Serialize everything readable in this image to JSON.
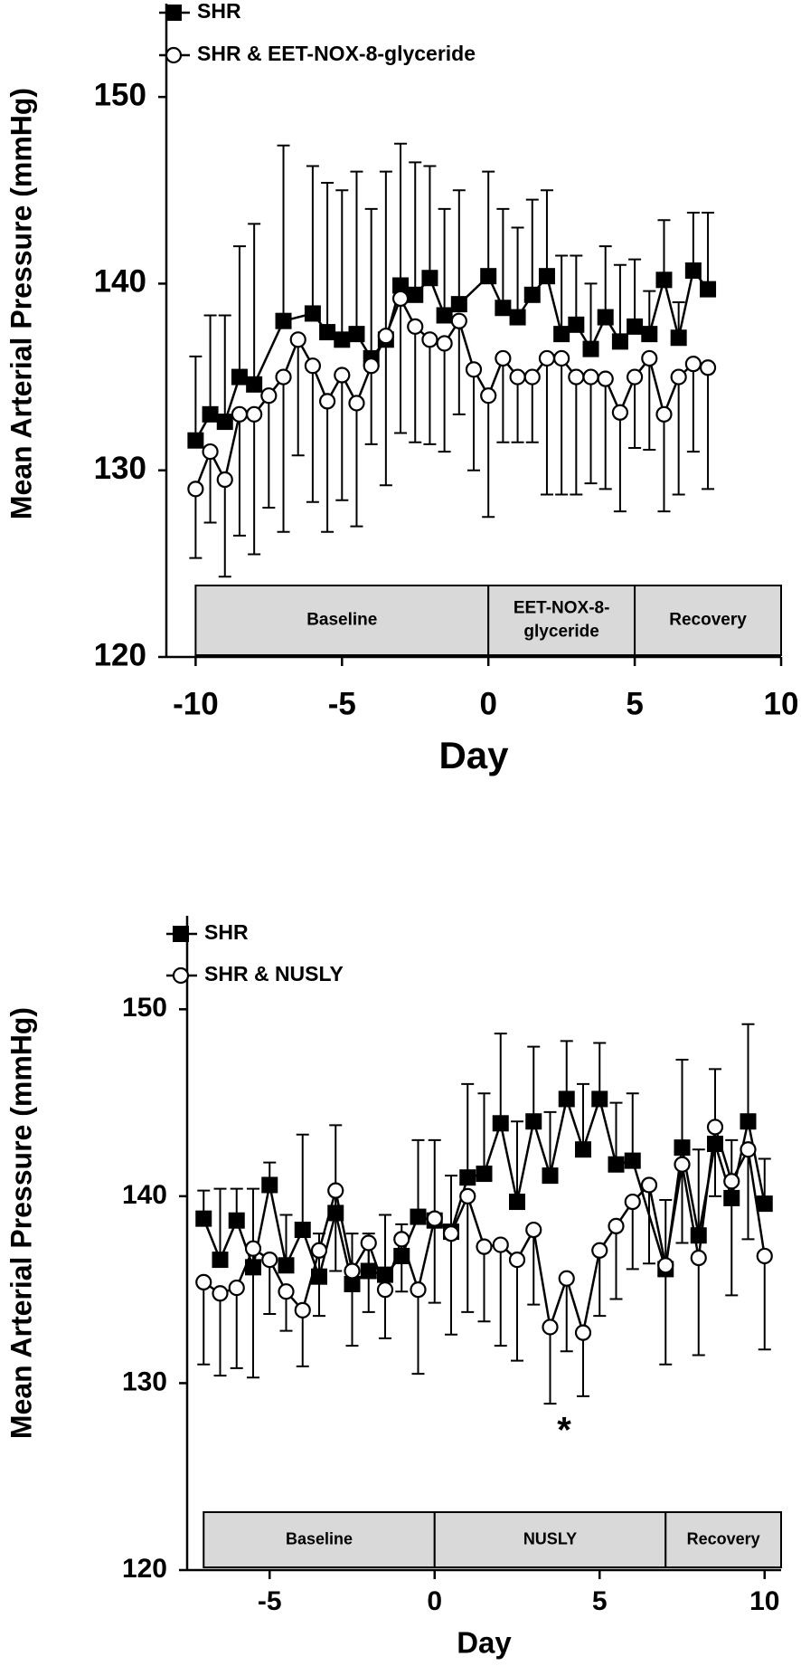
{
  "chart_data": [
    {
      "type": "line",
      "xlabel": "Day",
      "ylabel": "Mean Arterial Pressure (mmHg)",
      "xlim": [
        -11,
        10
      ],
      "xticks": [
        -10,
        -5,
        0,
        5,
        10
      ],
      "ylim": [
        120,
        155
      ],
      "yticks": [
        120,
        130,
        140,
        150
      ],
      "legend": "top-left",
      "phases": [
        {
          "label": [
            "Baseline"
          ],
          "start": -10,
          "end": 0
        },
        {
          "label": [
            "EET-NOX-8-",
            "glyceride"
          ],
          "start": 0,
          "end": 5
        },
        {
          "label": [
            "Recovery"
          ],
          "start": 5,
          "end": 10
        }
      ],
      "series": [
        {
          "name": "SHR",
          "color": "#000000",
          "marker": "square",
          "marker_fill": "#000000",
          "error_direction": "up",
          "x": [
            -10,
            -9.5,
            -9,
            -8.5,
            -8,
            -7,
            -6,
            -5.5,
            -5,
            -4.5,
            -4,
            -3.5,
            -3,
            -2.5,
            -2,
            -1.5,
            -1,
            0,
            0.5,
            1,
            1.5,
            2,
            2.5,
            3,
            3.5,
            4,
            4.5,
            5,
            5.5,
            6,
            6.5,
            7,
            7.5
          ],
          "values": [
            131.6,
            133,
            132.6,
            135,
            134.6,
            138,
            138.4,
            137.4,
            137,
            137.3,
            136,
            137,
            139.9,
            139.4,
            140.3,
            138.3,
            138.9,
            140.4,
            138.7,
            138.2,
            139.4,
            140.4,
            137.3,
            137.8,
            136.5,
            138.2,
            136.9,
            137.7,
            137.3,
            140.2,
            137.1,
            140.7,
            139.7
          ],
          "errors": [
            4.5,
            5.3,
            5.7,
            7,
            8.6,
            9.4,
            7.9,
            8,
            8,
            8.7,
            8,
            9,
            7.6,
            7.1,
            6,
            5.7,
            6.1,
            5.6,
            5.3,
            4.8,
            5.1,
            4.6,
            4.2,
            3.7,
            3.5,
            3.8,
            4.1,
            3.6,
            2.3,
            3.2,
            1.9,
            3.1,
            4.1
          ]
        },
        {
          "name": "SHR & EET-NOX-8-glyceride",
          "color": "#000000",
          "marker": "circle",
          "marker_fill": "#ffffff",
          "error_direction": "down",
          "x": [
            -10,
            -9.5,
            -9,
            -8.5,
            -8,
            -7.5,
            -7,
            -6.5,
            -6,
            -5.5,
            -5,
            -4.5,
            -4,
            -3.5,
            -3,
            -2.5,
            -2,
            -1.5,
            -1,
            -0.5,
            0,
            0.5,
            1,
            1.5,
            2,
            2.5,
            3,
            3.5,
            4,
            4.5,
            5,
            5.5,
            6,
            6.5,
            7,
            7.5
          ],
          "values": [
            129,
            131,
            129.5,
            133,
            133,
            134,
            135,
            137,
            135.6,
            133.7,
            135.1,
            133.6,
            135.6,
            137.2,
            139.2,
            137.7,
            137,
            136.8,
            138,
            135.4,
            134,
            136,
            135,
            135,
            136,
            136,
            135,
            135,
            134.9,
            133.1,
            135,
            136,
            133,
            135,
            135.7,
            135.5
          ],
          "errors": [
            3.7,
            3.8,
            5.2,
            6.5,
            7.5,
            6,
            8.3,
            6.2,
            7.3,
            7,
            6.7,
            6.6,
            4.2,
            8,
            7.2,
            6.2,
            5.6,
            5.8,
            5,
            5.4,
            6.5,
            4.5,
            3.5,
            3.5,
            7.3,
            7.3,
            6.3,
            5.7,
            5.9,
            5.3,
            3.8,
            4.9,
            5.2,
            6.3,
            4.7,
            6.5
          ]
        }
      ]
    },
    {
      "type": "line",
      "xlabel": "Day",
      "ylabel": "Mean Arterial Pressure (mmHg)",
      "xlim": [
        -7.5,
        10.5
      ],
      "xticks": [
        -5,
        0,
        5,
        10
      ],
      "ylim": [
        120,
        155
      ],
      "yticks": [
        120,
        130,
        140,
        150
      ],
      "legend": "top-left",
      "annotations": [
        {
          "text": "*"
        }
      ],
      "phases": [
        {
          "label": [
            "Baseline"
          ],
          "start": -7,
          "end": 0
        },
        {
          "label": [
            "NUSLY"
          ],
          "start": 0,
          "end": 7
        },
        {
          "label": [
            "Recovery"
          ],
          "start": 7,
          "end": 10.5
        }
      ],
      "series": [
        {
          "name": "SHR",
          "color": "#000000",
          "marker": "square",
          "marker_fill": "#000000",
          "error_direction": "up",
          "x": [
            -7,
            -6.5,
            -6,
            -5.5,
            -5,
            -4.5,
            -4,
            -3.5,
            -3,
            -2.5,
            -2,
            -1.5,
            -1,
            -0.5,
            0,
            0.5,
            1,
            1.5,
            2,
            2.5,
            3,
            3.5,
            4,
            4.5,
            5,
            5.5,
            6,
            7,
            7.5,
            8,
            8.5,
            9,
            9.5,
            10
          ],
          "values": [
            138.8,
            136.6,
            138.7,
            136.2,
            140.6,
            136.3,
            138.2,
            135.7,
            139.1,
            135.3,
            136,
            135.8,
            136.8,
            138.9,
            138.7,
            138.1,
            141,
            141.2,
            143.9,
            139.7,
            144,
            141.1,
            145.2,
            142.5,
            145.2,
            141.7,
            141.9,
            136.1,
            142.6,
            137.9,
            142.8,
            139.9,
            144,
            139.6
          ],
          "errors": [
            1.5,
            3.8,
            1.7,
            4.2,
            1.2,
            2.7,
            5.1,
            2.3,
            4.7,
            2.7,
            2,
            3.2,
            1.7,
            4.1,
            4.3,
            3,
            5,
            4.3,
            4.8,
            4.3,
            4,
            3.4,
            3.1,
            3.5,
            3,
            3.3,
            3.6,
            3.7,
            4.7,
            4.6,
            4,
            3.1,
            5.2,
            2.4
          ]
        },
        {
          "name": "SHR & NUSLY",
          "color": "#000000",
          "marker": "circle",
          "marker_fill": "#ffffff",
          "error_direction": "down",
          "x": [
            -7,
            -6.5,
            -6,
            -5.5,
            -5,
            -4.5,
            -4,
            -3.5,
            -3,
            -2.5,
            -2,
            -1.5,
            -1,
            -0.5,
            0,
            0.5,
            1,
            1.5,
            2,
            2.5,
            3,
            3.5,
            4,
            4.5,
            5,
            5.5,
            6,
            6.5,
            7,
            7.5,
            8,
            8.5,
            9,
            9.5,
            10
          ],
          "values": [
            135.4,
            134.8,
            135.1,
            137.2,
            136.6,
            134.9,
            133.9,
            137.1,
            140.3,
            136,
            137.5,
            135,
            137.7,
            135,
            138.8,
            138,
            140,
            137.3,
            137.4,
            136.6,
            138.2,
            133,
            135.6,
            132.7,
            137.1,
            138.4,
            139.7,
            140.6,
            136.3,
            141.7,
            136.7,
            143.7,
            140.8,
            142.5,
            136.8
          ],
          "errors": [
            4.4,
            4.4,
            4.3,
            6.9,
            2.9,
            2.1,
            3,
            3.5,
            4.3,
            4,
            3.7,
            2.6,
            2.8,
            4.5,
            4.5,
            5.4,
            6.2,
            4,
            5.4,
            5.4,
            4,
            4.1,
            3.9,
            3.4,
            3.5,
            3.9,
            3.6,
            4.2,
            5.3,
            4.2,
            5.2,
            3.7,
            6.1,
            4.8,
            5
          ]
        }
      ]
    }
  ]
}
